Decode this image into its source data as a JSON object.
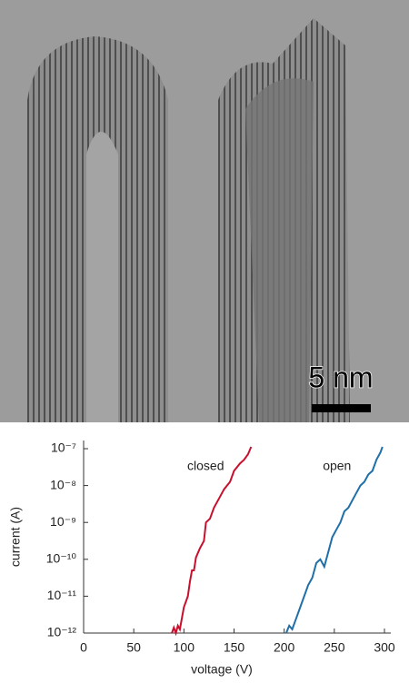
{
  "image": {
    "scale_label": "5 nm"
  },
  "chart_data": {
    "type": "line",
    "xlabel": "voltage (V)",
    "ylabel": "current (A)",
    "xlim": [
      0,
      300
    ],
    "xticks": [
      0,
      50,
      100,
      150,
      200,
      250,
      300
    ],
    "ylim": [
      1e-12,
      1e-07
    ],
    "log_y": true,
    "yticks": [
      {
        "value": 1e-07,
        "label": "10⁻⁷"
      },
      {
        "value": 1e-08,
        "label": "10⁻⁸"
      },
      {
        "value": 1e-09,
        "label": "10⁻⁹"
      },
      {
        "value": 1e-10,
        "label": "10⁻¹⁰"
      },
      {
        "value": 1e-11,
        "label": "10⁻¹¹"
      },
      {
        "value": 1e-12,
        "label": "10⁻¹²"
      }
    ],
    "series": [
      {
        "name": "closed",
        "color": "#c8102e",
        "x": [
          88,
          90,
          92,
          94,
          96,
          98,
          100,
          104,
          106,
          108,
          110,
          112,
          116,
          120,
          122,
          126,
          130,
          136,
          140,
          146,
          150,
          156,
          160,
          164,
          167
        ],
        "values": [
          1e-12,
          1.41e-12,
          1e-12,
          1.58e-12,
          1.26e-12,
          2.51e-12,
          5.01e-12,
          1e-11,
          2.51e-11,
          5.01e-11,
          5.01e-11,
          1.12e-10,
          2e-10,
          3.16e-10,
          1e-09,
          1.26e-09,
          2.51e-09,
          5.01e-09,
          7.94e-09,
          1.26e-08,
          2.51e-08,
          3.98e-08,
          5.01e-08,
          7.08e-08,
          1.12e-07
        ]
      },
      {
        "name": "open",
        "color": "#1f6fa8",
        "x": [
          202,
          205,
          208,
          212,
          216,
          220,
          224,
          228,
          232,
          236,
          240,
          244,
          248,
          252,
          256,
          260,
          264,
          268,
          272,
          276,
          280,
          284,
          288,
          292,
          296,
          298
        ],
        "values": [
          1e-12,
          1.58e-12,
          1.26e-12,
          2.51e-12,
          5.01e-12,
          1e-11,
          2e-11,
          3.16e-11,
          7.94e-11,
          1e-10,
          6.31e-11,
          1.58e-10,
          3.98e-10,
          6.31e-10,
          1e-09,
          2e-09,
          2.51e-09,
          3.98e-09,
          6.31e-09,
          1e-08,
          1.26e-08,
          2e-08,
          2.51e-08,
          5.01e-08,
          7.94e-08,
          1.12e-07
        ]
      }
    ]
  }
}
